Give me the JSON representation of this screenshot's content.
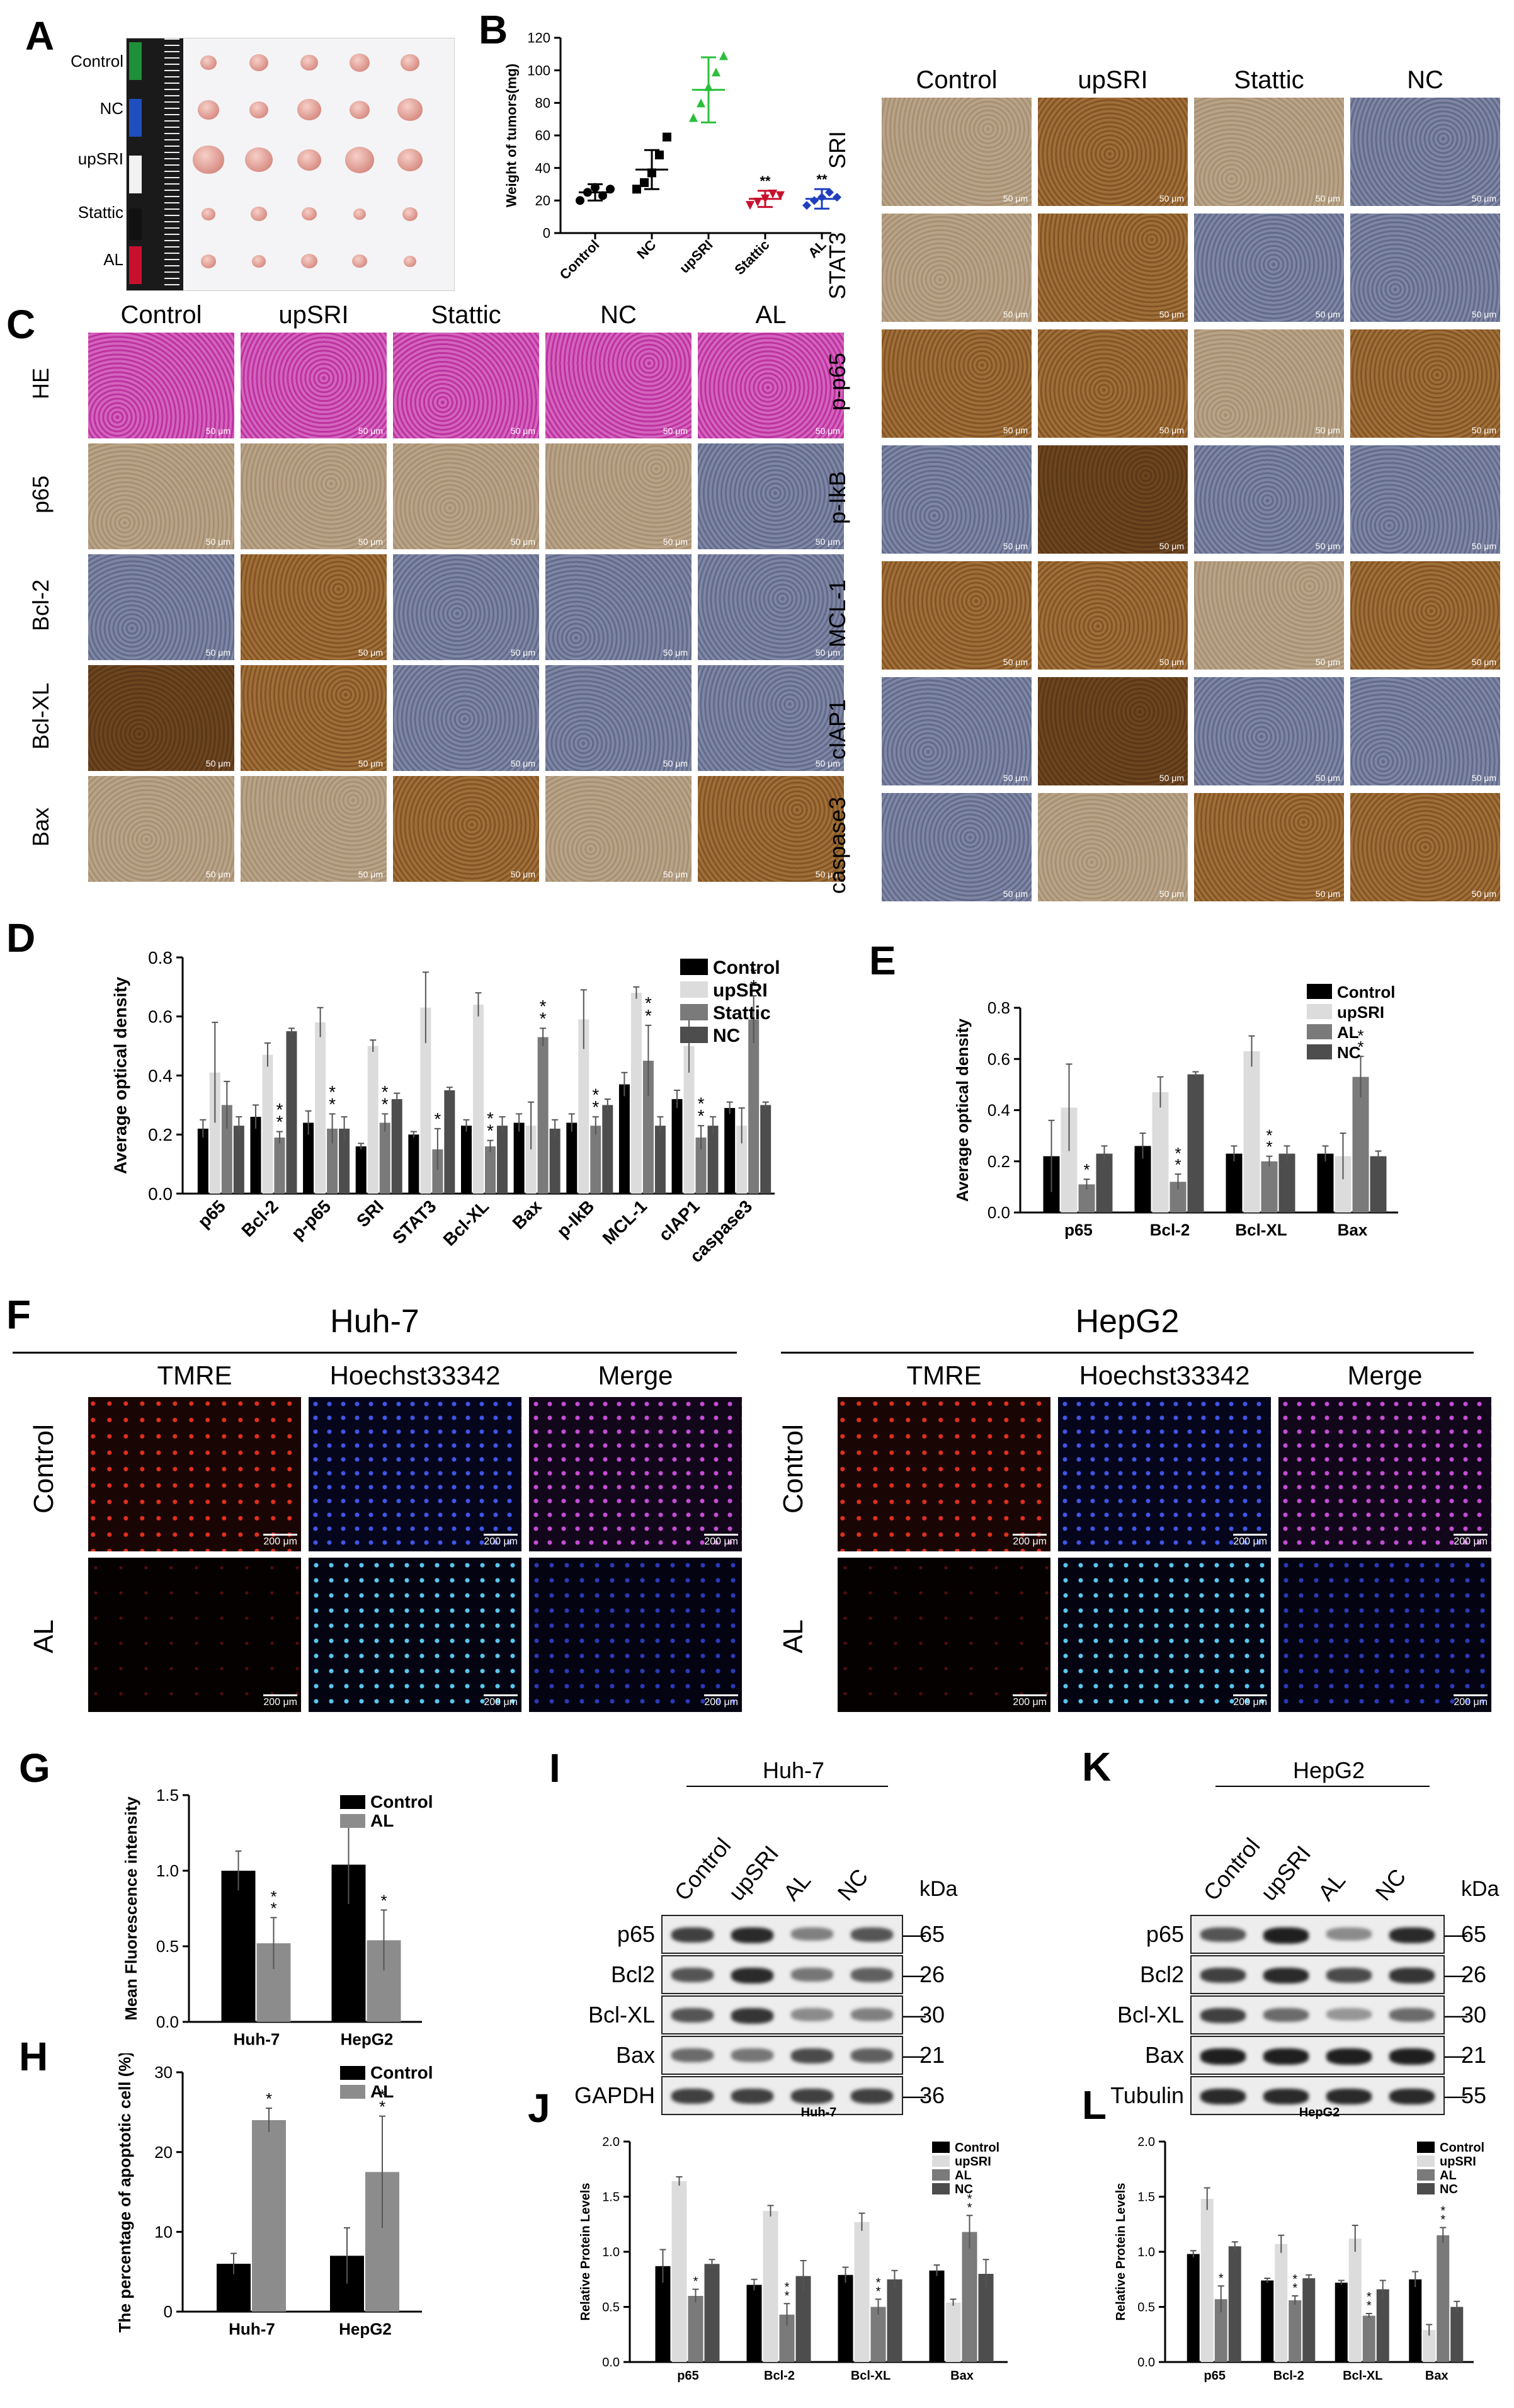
{
  "letters": {
    "A": "A",
    "B": "B",
    "C": "C",
    "D": "D",
    "E": "E",
    "F": "F",
    "G": "G",
    "H": "H",
    "I": "I",
    "J": "J",
    "K": "K",
    "L": "L"
  },
  "panelA": {
    "rows": [
      "Control",
      "NC",
      "upSRI",
      "Stattic",
      "AL"
    ]
  },
  "panelB": {
    "ylabel": "Weight of tumors(mg)",
    "sig": "**"
  },
  "panelC_left": {
    "cols": [
      "Control",
      "upSRI",
      "Stattic",
      "NC",
      "AL"
    ],
    "rows": [
      "HE",
      "p65",
      "Bcl-2",
      "Bcl-XL",
      "Bax"
    ],
    "scale": "50 μm"
  },
  "panelC_right": {
    "cols": [
      "Control",
      "upSRI",
      "Stattic",
      "NC"
    ],
    "rows": [
      "SRI",
      "STAT3",
      "p-p65",
      "p-IkB",
      "MCL-1",
      "cIAP1",
      "caspase3"
    ],
    "scale": "50 μm"
  },
  "panelF": {
    "huh7": {
      "title": "Huh-7",
      "cols": [
        "TMRE",
        "Hoechst33342",
        "Merge"
      ],
      "rows": [
        "Control",
        "AL"
      ]
    },
    "hepg2": {
      "title": "HepG2",
      "cols": [
        "TMRE",
        "Hoechst33342",
        "Merge"
      ],
      "rows": [
        "Control",
        "AL"
      ]
    },
    "scale": "200 μm"
  },
  "panelI": {
    "title": "Huh-7",
    "lanes": [
      "Control",
      "upSRI",
      "AL",
      "NC"
    ],
    "kda_label": "kDa",
    "proteins": [
      "p65",
      "Bcl2",
      "Bcl-XL",
      "Bax",
      "GAPDH"
    ],
    "kda": [
      "65",
      "26",
      "30",
      "21",
      "36"
    ]
  },
  "panelK": {
    "title": "HepG2",
    "lanes": [
      "Control",
      "upSRI",
      "AL",
      "NC"
    ],
    "kda_label": "kDa",
    "proteins": [
      "p65",
      "Bcl2",
      "Bcl-XL",
      "Bax",
      "Tubulin"
    ],
    "kda": [
      "65",
      "26",
      "30",
      "21",
      "55"
    ]
  },
  "chart_data": [
    {
      "id": "B",
      "type": "scatter",
      "ylabel": "Weight of tumors(mg)",
      "ylim": [
        0,
        120
      ],
      "yticks": [
        0,
        20,
        40,
        60,
        80,
        100,
        120
      ],
      "categories": [
        "Control",
        "NC",
        "upSRI",
        "Stattic",
        "AL"
      ],
      "mean": [
        25,
        39,
        88,
        21,
        21
      ],
      "sd": [
        5,
        12,
        20,
        5,
        6
      ],
      "points": [
        [
          20,
          25,
          28,
          23,
          27
        ],
        [
          27,
          31,
          37,
          48,
          59
        ],
        [
          71,
          80,
          90,
          99,
          109
        ],
        [
          17,
          19,
          21,
          24,
          23
        ],
        [
          17,
          20,
          22,
          25,
          22
        ]
      ],
      "colors": [
        "#000000",
        "#000000",
        "#2bbf3b",
        "#c8102e",
        "#1f3fbf"
      ],
      "markers": [
        "circle",
        "square",
        "triangle",
        "triangle-down",
        "diamond"
      ],
      "stars": [
        "",
        "",
        "",
        "**",
        "**"
      ]
    },
    {
      "id": "D",
      "type": "bar",
      "ylabel": "Average optical density",
      "ylim": [
        0,
        0.8
      ],
      "yticks": [
        0,
        0.2,
        0.4,
        0.6,
        0.8
      ],
      "categories": [
        "p65",
        "Bcl-2",
        "p-p65",
        "SRI",
        "STAT3",
        "Bcl-XL",
        "Bax",
        "p-IkB",
        "MCL-1",
        "cIAP1",
        "caspase3"
      ],
      "series": [
        {
          "name": "Control",
          "color": "#000000",
          "values": [
            0.22,
            0.26,
            0.24,
            0.16,
            0.2,
            0.23,
            0.24,
            0.24,
            0.37,
            0.32,
            0.29
          ],
          "err": [
            0.03,
            0.04,
            0.04,
            0.01,
            0.01,
            0.02,
            0.03,
            0.03,
            0.04,
            0.03,
            0.02
          ]
        },
        {
          "name": "upSRI",
          "color": "#dcdcdc",
          "values": [
            0.41,
            0.47,
            0.58,
            0.5,
            0.63,
            0.64,
            0.23,
            0.59,
            0.68,
            0.5,
            0.23
          ],
          "err": [
            0.17,
            0.04,
            0.05,
            0.02,
            0.12,
            0.04,
            0.08,
            0.1,
            0.02,
            0.09,
            0.06
          ]
        },
        {
          "name": "Stattic",
          "color": "#7a7a7a",
          "values": [
            0.3,
            0.19,
            0.22,
            0.24,
            0.15,
            0.16,
            0.53,
            0.23,
            0.45,
            0.19,
            0.59
          ],
          "err": [
            0.08,
            0.02,
            0.05,
            0.03,
            0.07,
            0.02,
            0.03,
            0.03,
            0.12,
            0.04,
            0.08
          ]
        },
        {
          "name": "NC",
          "color": "#4d4d4d",
          "values": [
            0.23,
            0.55,
            0.22,
            0.32,
            0.35,
            0.23,
            0.22,
            0.3,
            0.23,
            0.23,
            0.3
          ],
          "err": [
            0.03,
            0.01,
            0.04,
            0.02,
            0.01,
            0.03,
            0.03,
            0.02,
            0.03,
            0.03,
            0.01
          ]
        }
      ],
      "stars": [
        {
          "cat": 1,
          "series": 2,
          "text": "*\n*"
        },
        {
          "cat": 2,
          "series": 2,
          "text": "*\n*"
        },
        {
          "cat": 3,
          "series": 2,
          "text": "*\n*"
        },
        {
          "cat": 4,
          "series": 2,
          "text": "*"
        },
        {
          "cat": 5,
          "series": 2,
          "text": "*\n*"
        },
        {
          "cat": 6,
          "series": 2,
          "text": "*\n*"
        },
        {
          "cat": 7,
          "series": 2,
          "text": "*\n*"
        },
        {
          "cat": 8,
          "series": 2,
          "text": "*\n*"
        },
        {
          "cat": 9,
          "series": 2,
          "text": "*\n*"
        },
        {
          "cat": 10,
          "series": 2,
          "text": "*\n*"
        }
      ]
    },
    {
      "id": "E",
      "type": "bar",
      "ylabel": "Average optical density",
      "ylim": [
        0,
        0.8
      ],
      "yticks": [
        0,
        0.2,
        0.4,
        0.6,
        0.8
      ],
      "categories": [
        "p65",
        "Bcl-2",
        "Bcl-XL",
        "Bax"
      ],
      "series": [
        {
          "name": "Control",
          "color": "#000000",
          "values": [
            0.22,
            0.26,
            0.23,
            0.23
          ],
          "err": [
            0.14,
            0.05,
            0.03,
            0.03
          ]
        },
        {
          "name": "upSRI",
          "color": "#dcdcdc",
          "values": [
            0.41,
            0.47,
            0.63,
            0.22
          ],
          "err": [
            0.17,
            0.06,
            0.06,
            0.09
          ]
        },
        {
          "name": "AL",
          "color": "#7a7a7a",
          "values": [
            0.11,
            0.12,
            0.2,
            0.53
          ],
          "err": [
            0.02,
            0.03,
            0.02,
            0.08
          ]
        },
        {
          "name": "NC",
          "color": "#4d4d4d",
          "values": [
            0.23,
            0.54,
            0.23,
            0.22
          ],
          "err": [
            0.03,
            0.01,
            0.03,
            0.02
          ]
        }
      ],
      "stars": [
        {
          "cat": 0,
          "series": 2,
          "text": "*"
        },
        {
          "cat": 1,
          "series": 2,
          "text": "*\n*"
        },
        {
          "cat": 2,
          "series": 2,
          "text": "*\n*"
        },
        {
          "cat": 3,
          "series": 2,
          "text": "*\n*"
        }
      ]
    },
    {
      "id": "G",
      "type": "bar",
      "ylabel": "Mean Fluorescence intensity",
      "ylim": [
        0,
        1.5
      ],
      "yticks": [
        0,
        0.5,
        1.0,
        1.5
      ],
      "categories": [
        "Huh-7",
        "HepG2"
      ],
      "series": [
        {
          "name": "Control",
          "color": "#000000",
          "values": [
            1.0,
            1.04
          ],
          "err": [
            0.13,
            0.26
          ]
        },
        {
          "name": "AL",
          "color": "#8c8c8c",
          "values": [
            0.52,
            0.54
          ],
          "err": [
            0.17,
            0.2
          ]
        }
      ],
      "stars": [
        {
          "cat": 0,
          "series": 1,
          "text": "*\n*"
        },
        {
          "cat": 1,
          "series": 1,
          "text": "*"
        }
      ]
    },
    {
      "id": "H",
      "type": "bar",
      "ylabel": "The percentage of apoptotic cell (%)",
      "ylim": [
        0,
        30
      ],
      "yticks": [
        0,
        10,
        20,
        30
      ],
      "categories": [
        "Huh-7",
        "HepG2"
      ],
      "series": [
        {
          "name": "Control",
          "color": "#000000",
          "values": [
            6,
            7
          ],
          "err": [
            1.3,
            3.5
          ]
        },
        {
          "name": "AL",
          "color": "#8c8c8c",
          "values": [
            24,
            17.5
          ],
          "err": [
            1.5,
            7
          ]
        }
      ],
      "stars": [
        {
          "cat": 0,
          "series": 1,
          "text": "*"
        },
        {
          "cat": 1,
          "series": 1,
          "text": "*\n*"
        }
      ]
    },
    {
      "id": "J",
      "type": "bar",
      "title": "Huh-7",
      "ylabel": "Relative Protein Levels",
      "ylim": [
        0,
        2.0
      ],
      "yticks": [
        0,
        0.5,
        1.0,
        1.5,
        2.0
      ],
      "categories": [
        "p65",
        "Bcl-2",
        "Bcl-XL",
        "Bax"
      ],
      "series": [
        {
          "name": "Control",
          "color": "#000000",
          "values": [
            0.87,
            0.7,
            0.79,
            0.83
          ],
          "err": [
            0.15,
            0.05,
            0.07,
            0.05
          ]
        },
        {
          "name": "upSRI",
          "color": "#dcdcdc",
          "values": [
            1.64,
            1.37,
            1.27,
            0.54
          ],
          "err": [
            0.04,
            0.05,
            0.08,
            0.03
          ]
        },
        {
          "name": "AL",
          "color": "#7a7a7a",
          "values": [
            0.6,
            0.43,
            0.5,
            1.18
          ],
          "err": [
            0.06,
            0.1,
            0.07,
            0.15
          ]
        },
        {
          "name": "NC",
          "color": "#4d4d4d",
          "values": [
            0.89,
            0.78,
            0.75,
            0.8
          ],
          "err": [
            0.04,
            0.14,
            0.08,
            0.13
          ]
        }
      ],
      "stars": [
        {
          "cat": 0,
          "series": 2,
          "text": "*"
        },
        {
          "cat": 1,
          "series": 2,
          "text": "*\n*"
        },
        {
          "cat": 2,
          "series": 2,
          "text": "*\n*"
        },
        {
          "cat": 3,
          "series": 2,
          "text": "*\n*"
        }
      ]
    },
    {
      "id": "L",
      "type": "bar",
      "title": "HepG2",
      "ylabel": "Relative Protein Levels",
      "ylim": [
        0,
        2.0
      ],
      "yticks": [
        0,
        0.5,
        1.0,
        1.5,
        2.0
      ],
      "categories": [
        "p65",
        "Bcl-2",
        "Bcl-XL",
        "Bax"
      ],
      "series": [
        {
          "name": "Control",
          "color": "#000000",
          "values": [
            0.98,
            0.74,
            0.72,
            0.75
          ],
          "err": [
            0.03,
            0.02,
            0.02,
            0.07
          ]
        },
        {
          "name": "upSRI",
          "color": "#dcdcdc",
          "values": [
            1.48,
            1.07,
            1.12,
            0.29
          ],
          "err": [
            0.1,
            0.08,
            0.12,
            0.05
          ]
        },
        {
          "name": "AL",
          "color": "#7a7a7a",
          "values": [
            0.57,
            0.56,
            0.42,
            1.15
          ],
          "err": [
            0.12,
            0.04,
            0.02,
            0.07
          ]
        },
        {
          "name": "NC",
          "color": "#4d4d4d",
          "values": [
            1.05,
            0.76,
            0.66,
            0.5
          ],
          "err": [
            0.04,
            0.03,
            0.08,
            0.05
          ]
        }
      ],
      "stars": [
        {
          "cat": 0,
          "series": 2,
          "text": "*"
        },
        {
          "cat": 1,
          "series": 2,
          "text": "*\n*"
        },
        {
          "cat": 2,
          "series": 2,
          "text": "*\n*"
        },
        {
          "cat": 3,
          "series": 2,
          "text": "*\n*"
        }
      ]
    }
  ]
}
